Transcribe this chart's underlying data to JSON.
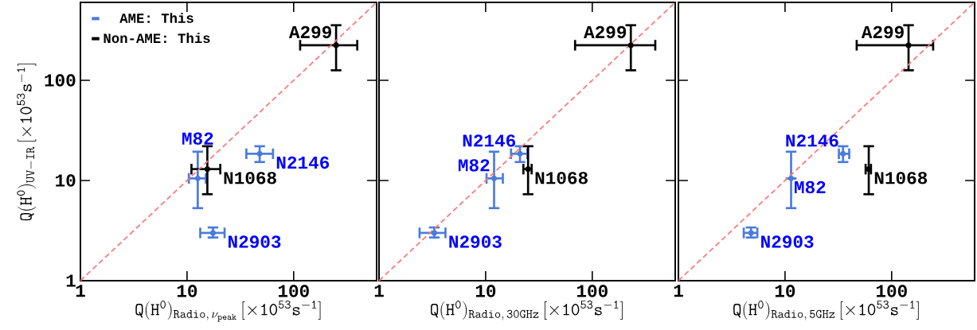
{
  "chart_data": [
    {
      "type": "scatter",
      "xlabel": "\\mathtt{Q(H^{0})_{Radio,\\,\\nu_{peak}}\\,[\\times 10^{53}s^{-1}]}",
      "ylabel": "\\mathtt{Q(H^{0})_{UV-IR}\\,[\\times 10^{53}s^{-1}]}",
      "xlim": [
        1,
        600
      ],
      "ylim": [
        1,
        600
      ],
      "xticks": [
        1,
        10,
        100
      ],
      "yticks": [
        1,
        10,
        100
      ],
      "log": "xy",
      "legend": "top left",
      "series": [
        {
          "name": "AME: This",
          "color": "#4a7bdc",
          "x": [
            12.6,
            48,
            17.5
          ],
          "values": [
            10.5,
            18.5,
            3.0
          ],
          "errors": [
            [
              5.3,
              19.4
            ],
            [
              15.3,
              22
            ],
            [
              2.7,
              3.4
            ]
          ],
          "xerrors": [
            [
              10.4,
              15
            ],
            [
              36,
              64
            ],
            [
              13.3,
              22.5
            ]
          ]
        },
        {
          "name": "Non-AME: This",
          "color": "#000000",
          "x": [
            15.5,
            250
          ],
          "values": [
            13,
            224
          ],
          "errors": [
            [
              7.3,
              22
            ],
            [
              126,
              355
            ]
          ],
          "xerrors": [
            [
              11,
              20.5
            ],
            [
              115,
              395
            ]
          ]
        },
        {
          "type": "line",
          "color": "#ff7777",
          "line_style": "dashed",
          "x": [
            1,
            600
          ],
          "values": [
            1,
            600
          ]
        }
      ],
      "annotations": [
        {
          "text": "A299",
          "x": 250,
          "y": 224
        },
        {
          "text": "N1068",
          "x": 15.5,
          "y": 13
        },
        {
          "text": "M82",
          "x": 12.6,
          "y": 10.5
        },
        {
          "text": "N2146",
          "x": 48,
          "y": 18.5
        },
        {
          "text": "N2903",
          "x": 17.5,
          "y": 3.0
        }
      ]
    },
    {
      "type": "scatter",
      "xlabel": "\\mathtt{Q(H^{0})_{Radio,\\,30GHz}\\,[\\times 10^{53}s^{-1}]}",
      "xlim": [
        1,
        600
      ],
      "ylim": [
        1,
        600
      ],
      "xticks": [
        1,
        10,
        100
      ],
      "yticks": [
        1,
        10,
        100
      ],
      "log": "xy",
      "tick_labels": "x",
      "series": [
        {
          "color": "#4a7bdc",
          "x": [
            12,
            21,
            3.3
          ],
          "values": [
            10.5,
            18.5,
            3.0
          ],
          "errors": [
            [
              5.3,
              19.4
            ],
            [
              15.3,
              22
            ],
            [
              2.7,
              3.4
            ]
          ],
          "xerrors": [
            [
              10.2,
              14.5
            ],
            [
              17.3,
              24.6
            ],
            [
              2.4,
              4.2
            ]
          ]
        },
        {
          "color": "#000000",
          "x": [
            25,
            230
          ],
          "values": [
            13,
            224
          ],
          "errors": [
            [
              7.3,
              22
            ],
            [
              126,
              355
            ]
          ],
          "xerrors": [
            [
              22.6,
              27
            ],
            [
              69,
              390
            ]
          ]
        },
        {
          "type": "line",
          "color": "#ff7777",
          "line_style": "dashed",
          "x": [
            1,
            600
          ],
          "values": [
            1,
            600
          ]
        }
      ],
      "annotations": [
        {
          "text": "A299",
          "x": 230,
          "y": 224
        },
        {
          "text": "N2146",
          "x": 21,
          "y": 18.5
        },
        {
          "text": "M82",
          "x": 12,
          "y": 10.5
        },
        {
          "text": "N1068",
          "x": 25,
          "y": 13
        },
        {
          "text": "N2903",
          "x": 3.3,
          "y": 3.0
        }
      ]
    },
    {
      "type": "scatter",
      "xlabel": "\\mathtt{Q(H^{0})_{Radio,\\,5GHz}\\,[\\times 10^{53}s^{-1}]}",
      "xlim": [
        1,
        600
      ],
      "ylim": [
        1,
        600
      ],
      "xticks": [
        1,
        10,
        100
      ],
      "yticks": [
        1,
        10,
        100
      ],
      "log": "xy",
      "tick_labels": "x",
      "series": [
        {
          "color": "#4a7bdc",
          "x": [
            11.4,
            35,
            4.8
          ],
          "values": [
            10.5,
            18.5,
            3.0
          ],
          "errors": [
            [
              5.3,
              19.4
            ],
            [
              15.3,
              22
            ],
            [
              2.7,
              3.4
            ]
          ],
          "xerrors": [
            null,
            [
              32,
              40
            ],
            [
              4.1,
              5.5
            ]
          ]
        },
        {
          "color": "#000000",
          "x": [
            61,
            144
          ],
          "values": [
            13,
            224
          ],
          "errors": [
            [
              7.3,
              22
            ],
            [
              126,
              355
            ]
          ],
          "xerrors": [
            [
              57,
              64
            ],
            [
              47,
              245
            ]
          ]
        },
        {
          "type": "line",
          "color": "#ff7777",
          "line_style": "dashed",
          "x": [
            1,
            600
          ],
          "values": [
            1,
            600
          ]
        }
      ],
      "annotations": [
        {
          "text": "A299",
          "x": 144,
          "y": 224
        },
        {
          "text": "N2146",
          "x": 35,
          "y": 18.5
        },
        {
          "text": "M82",
          "x": 11.4,
          "y": 10.5
        },
        {
          "text": "N1068",
          "x": 61,
          "y": 13
        },
        {
          "text": "N2903",
          "x": 4.8,
          "y": 3.0
        }
      ]
    }
  ]
}
